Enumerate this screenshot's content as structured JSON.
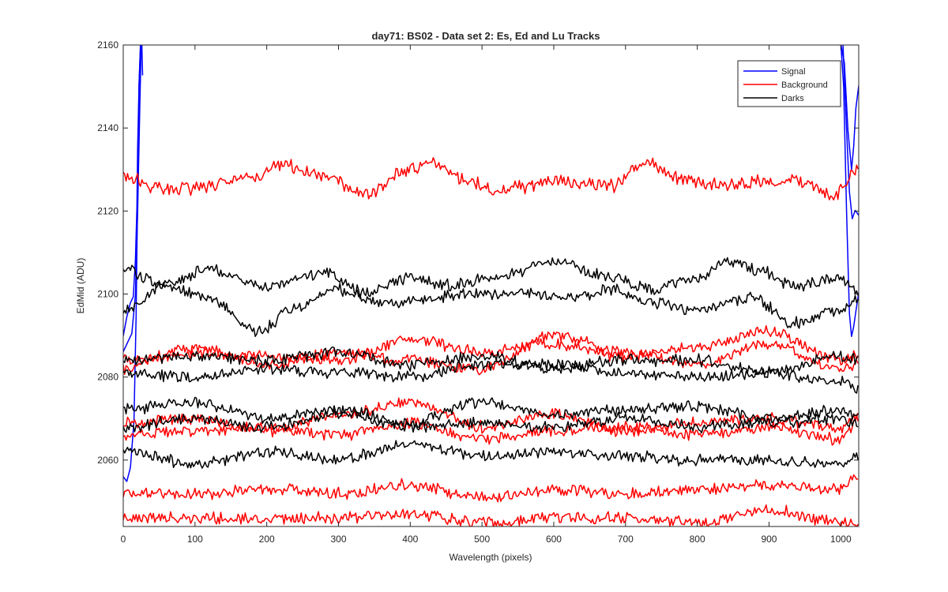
{
  "chart_data": {
    "type": "line",
    "title": "day71: BS02 - Data set 2: Es, Ed and Lu Tracks",
    "xlabel": "Wavelength (pixels)",
    "ylabel": "EdMid (ADU)",
    "xlim": [
      0,
      1025
    ],
    "ylim": [
      2044,
      2160
    ],
    "xticks": [
      0,
      100,
      200,
      300,
      400,
      500,
      600,
      700,
      800,
      900,
      1000
    ],
    "yticks": [
      2060,
      2080,
      2100,
      2120,
      2140,
      2160
    ],
    "grid": false,
    "legend": {
      "position": "top-right",
      "entries": [
        {
          "label": "Signal",
          "color": "#0000ff"
        },
        {
          "label": "Background",
          "color": "#ff0000"
        },
        {
          "label": "Darks",
          "color": "#000000"
        }
      ]
    },
    "series": [
      {
        "group": "Signal",
        "color": "#0000ff",
        "x": [
          0,
          5,
          10,
          14,
          17,
          19,
          20,
          22,
          24,
          26,
          27
        ],
        "y": [
          2090,
          2095,
          2098,
          2100,
          2108,
          2120,
          2135,
          2150,
          2160,
          2160,
          2152
        ]
      },
      {
        "group": "Signal",
        "color": "#0000ff",
        "x": [
          0,
          5,
          10,
          15,
          18,
          20,
          22,
          24,
          26
        ],
        "y": [
          2056,
          2055,
          2058,
          2070,
          2095,
          2125,
          2150,
          2160,
          2160
        ]
      },
      {
        "group": "Signal",
        "color": "#0000ff",
        "x": [
          0,
          6,
          12,
          17,
          20,
          23,
          25
        ],
        "y": [
          2086,
          2088,
          2090,
          2100,
          2120,
          2145,
          2160
        ]
      },
      {
        "group": "Signal",
        "color": "#0000ff",
        "x": [
          1000,
          1005,
          1010,
          1015,
          1018,
          1021,
          1025
        ],
        "y": [
          2160,
          2155,
          2140,
          2130,
          2135,
          2145,
          2150
        ]
      },
      {
        "group": "Signal",
        "color": "#0000ff",
        "x": [
          1003,
          1008,
          1012,
          1016,
          1020,
          1025
        ],
        "y": [
          2160,
          2140,
          2125,
          2118,
          2120,
          2119
        ]
      },
      {
        "group": "Signal",
        "color": "#0000ff",
        "x": [
          1000,
          1004,
          1008,
          1012,
          1015,
          1018,
          1021,
          1025
        ],
        "y": [
          2160,
          2150,
          2120,
          2095,
          2090,
          2092,
          2096,
          2100
        ]
      },
      {
        "group": "Background",
        "color": "#ff0000",
        "x": [
          0,
          60,
          120,
          180,
          220,
          280,
          340,
          400,
          430,
          470,
          520,
          560,
          620,
          680,
          730,
          770,
          830,
          880,
          930,
          990,
          1025
        ],
        "y": [
          2128,
          2125,
          2126,
          2128,
          2131,
          2128,
          2124,
          2130,
          2132,
          2128,
          2125,
          2126,
          2127,
          2126,
          2132,
          2128,
          2126,
          2127,
          2128,
          2124,
          2130
        ]
      },
      {
        "group": "Background",
        "color": "#ff0000",
        "x": [
          0,
          100,
          200,
          300,
          400,
          500,
          600,
          700,
          800,
          900,
          1000,
          1025
        ],
        "y": [
          2084,
          2086,
          2085,
          2084,
          2089,
          2086,
          2088,
          2085,
          2087,
          2091,
          2084,
          2085
        ]
      },
      {
        "group": "Background",
        "color": "#ff0000",
        "x": [
          0,
          100,
          200,
          300,
          400,
          500,
          600,
          700,
          800,
          900,
          1000,
          1025
        ],
        "y": [
          2082,
          2087,
          2083,
          2086,
          2084,
          2082,
          2090,
          2086,
          2083,
          2088,
          2082,
          2083
        ]
      },
      {
        "group": "Background",
        "color": "#ff0000",
        "x": [
          0,
          100,
          200,
          300,
          400,
          500,
          600,
          700,
          800,
          900,
          1000,
          1025
        ],
        "y": [
          2069,
          2070,
          2067,
          2071,
          2074,
          2068,
          2071,
          2067,
          2069,
          2070,
          2068,
          2071
        ]
      },
      {
        "group": "Background",
        "color": "#ff0000",
        "x": [
          0,
          100,
          200,
          300,
          400,
          500,
          600,
          700,
          800,
          900,
          1000,
          1025
        ],
        "y": [
          2066,
          2067,
          2068,
          2066,
          2069,
          2065,
          2067,
          2068,
          2066,
          2068,
          2065,
          2070
        ]
      },
      {
        "group": "Background",
        "color": "#ff0000",
        "x": [
          0,
          100,
          200,
          300,
          400,
          500,
          600,
          700,
          800,
          900,
          1000,
          1025
        ],
        "y": [
          2052,
          2052,
          2053,
          2052,
          2054,
          2051,
          2053,
          2052,
          2053,
          2054,
          2053,
          2056
        ]
      },
      {
        "group": "Background",
        "color": "#ff0000",
        "x": [
          0,
          100,
          200,
          300,
          400,
          500,
          600,
          700,
          800,
          900,
          1000,
          1025
        ],
        "y": [
          2046,
          2046,
          2046,
          2046,
          2047,
          2045,
          2046,
          2046,
          2045,
          2048,
          2045,
          2045
        ]
      },
      {
        "group": "Darks",
        "color": "#000000",
        "x": [
          0,
          60,
          120,
          200,
          280,
          340,
          400,
          450,
          520,
          600,
          680,
          740,
          800,
          840,
          880,
          940,
          1000,
          1025
        ],
        "y": [
          2106,
          2102,
          2106,
          2102,
          2105,
          2100,
          2104,
          2102,
          2104,
          2108,
          2104,
          2101,
          2104,
          2108,
          2106,
          2102,
          2104,
          2100
        ]
      },
      {
        "group": "Darks",
        "color": "#000000",
        "x": [
          0,
          60,
          120,
          190,
          240,
          300,
          360,
          400,
          480,
          550,
          620,
          680,
          740,
          800,
          880,
          930,
          1000,
          1025
        ],
        "y": [
          2096,
          2102,
          2099,
          2091,
          2097,
          2101,
          2098,
          2098,
          2100,
          2100,
          2099,
          2101,
          2098,
          2096,
          2099,
          2093,
          2096,
          2099
        ]
      },
      {
        "group": "Darks",
        "color": "#000000",
        "x": [
          0,
          100,
          200,
          300,
          400,
          500,
          600,
          700,
          800,
          900,
          1000,
          1025
        ],
        "y": [
          2084,
          2085,
          2084,
          2086,
          2083,
          2085,
          2082,
          2084,
          2084,
          2081,
          2085,
          2084
        ]
      },
      {
        "group": "Darks",
        "color": "#000000",
        "x": [
          0,
          100,
          200,
          300,
          400,
          500,
          600,
          700,
          800,
          900,
          1000,
          1025
        ],
        "y": [
          2081,
          2080,
          2082,
          2081,
          2080,
          2083,
          2083,
          2081,
          2080,
          2081,
          2079,
          2077
        ]
      },
      {
        "group": "Darks",
        "color": "#000000",
        "x": [
          0,
          100,
          200,
          300,
          400,
          500,
          600,
          700,
          800,
          900,
          1000,
          1025
        ],
        "y": [
          2072,
          2074,
          2070,
          2072,
          2069,
          2074,
          2071,
          2072,
          2073,
          2070,
          2072,
          2070
        ]
      },
      {
        "group": "Darks",
        "color": "#000000",
        "x": [
          0,
          100,
          200,
          300,
          400,
          500,
          600,
          700,
          800,
          900,
          1000,
          1025
        ],
        "y": [
          2068,
          2070,
          2068,
          2071,
          2068,
          2069,
          2068,
          2070,
          2068,
          2069,
          2070,
          2069
        ]
      },
      {
        "group": "Darks",
        "color": "#000000",
        "x": [
          0,
          100,
          200,
          300,
          400,
          500,
          600,
          700,
          800,
          900,
          1000,
          1025
        ],
        "y": [
          2062,
          2059,
          2062,
          2060,
          2064,
          2061,
          2062,
          2061,
          2060,
          2060,
          2059,
          2061
        ]
      }
    ]
  }
}
